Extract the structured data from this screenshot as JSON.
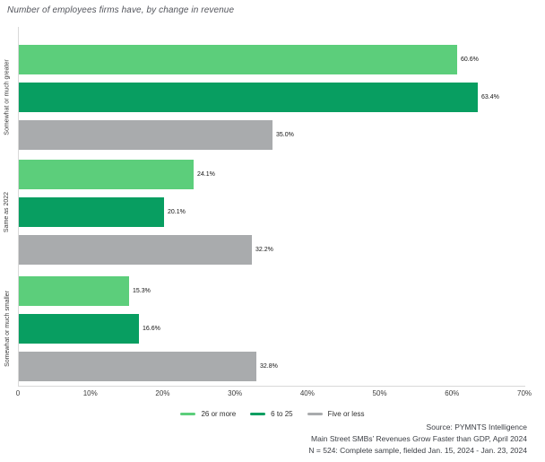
{
  "title": "Number of employees firms have, by change in revenue",
  "chart_data": {
    "type": "bar",
    "orientation": "horizontal",
    "title": "Number of employees firms have, by change in revenue",
    "categories": [
      "Somewhat or much greater",
      "Same as 2022",
      "Somewhat or much smaller"
    ],
    "series": [
      {
        "name": "26 or more",
        "color": "#5cce7b",
        "values": [
          60.6,
          24.1,
          15.3
        ],
        "labels": [
          "60.6%",
          "24.1%",
          "15.3%"
        ]
      },
      {
        "name": "6 to 25",
        "color": "#089e61",
        "values": [
          63.4,
          20.1,
          16.6
        ],
        "labels": [
          "63.4%",
          "20.1%",
          "16.6%"
        ]
      },
      {
        "name": "Five or less",
        "color": "#a9abad",
        "values": [
          35.0,
          32.2,
          32.8
        ],
        "labels": [
          "35.0%",
          "32.2%",
          "32.8%"
        ]
      }
    ],
    "x_ticks": [
      "0",
      "10%",
      "20%",
      "30%",
      "40%",
      "50%",
      "60%",
      "70%"
    ],
    "xlim": [
      0,
      70
    ],
    "grid": false,
    "legend_position": "bottom-center"
  },
  "footer": {
    "line1": "Source: PYMNTS Intelligence",
    "line2": "Main Street SMBs’ Revenues Grow Faster than GDP, April 2024",
    "line3": "N = 524: Complete sample, fielded Jan. 15, 2024 - Jan. 23, 2024"
  }
}
